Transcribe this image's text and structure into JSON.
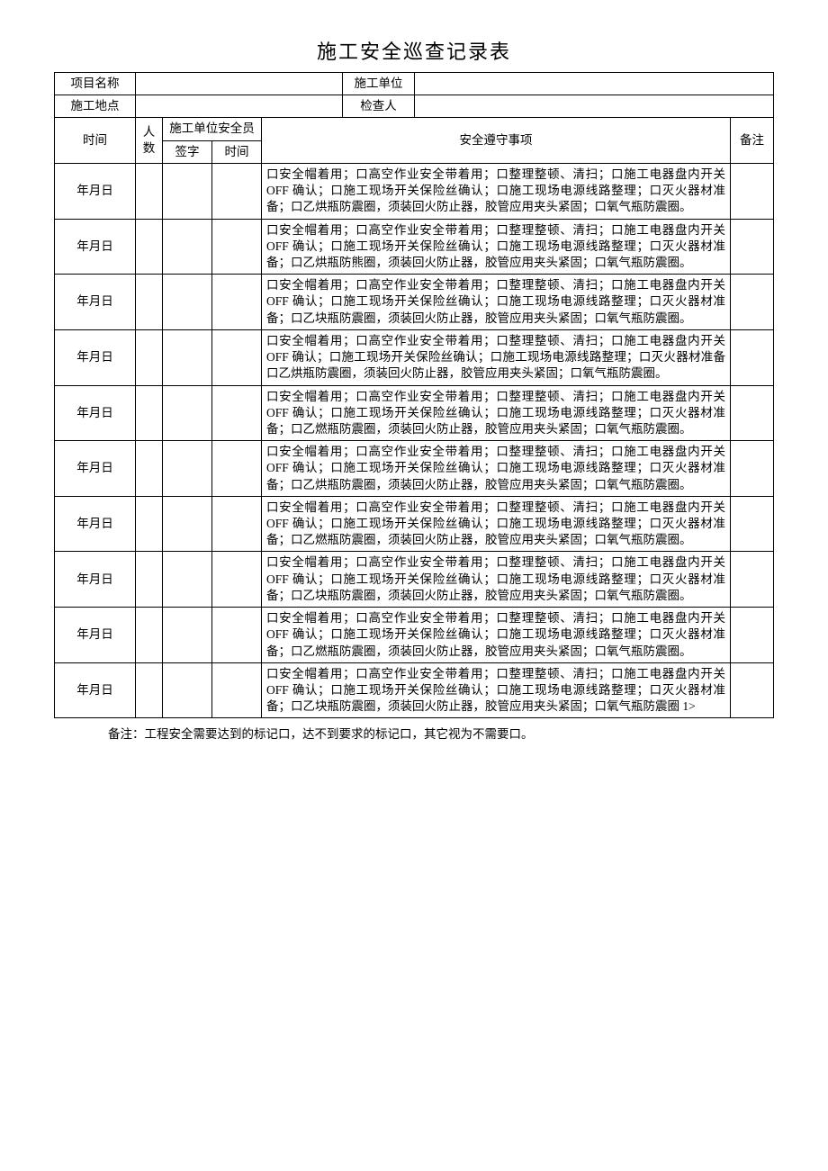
{
  "title": "施工安全巡查记录表",
  "header": {
    "project_name_label": "项目名称",
    "project_name_value": "",
    "construction_unit_label": "施工单位",
    "construction_unit_value": "",
    "construction_site_label": "施工地点",
    "construction_site_value": "",
    "inspector_label": "检查人",
    "inspector_value": ""
  },
  "columns": {
    "time_label": "时间",
    "people_label": "人数",
    "safety_officer_label": "施工单位安全员",
    "sign_label": "签字",
    "sign_time_label": "时间",
    "safety_items_label": "安全遵守事项",
    "remark_label": "备注"
  },
  "rows": [
    {
      "time": "年月日",
      "people": "",
      "sign": "",
      "sign_time": "",
      "safety": "口安全帽着用；口高空作业安全带着用；口整理整顿、清扫；口施工电器盘内开关 OFF 确认；口施工现场开关保险丝确认；口施工现场电源线路整理；口灭火器材准备；口乙烘瓶防震圈，须装回火防止器，胶管应用夹头紧固；口氧气瓶防震圈。",
      "remark": ""
    },
    {
      "time": "年月日",
      "people": "",
      "sign": "",
      "sign_time": "",
      "safety": "口安全帽着用；口高空作业安全带着用；口整理整顿、清扫；口施工电器盘内开关 OFF 确认；口施工现场开关保险丝确认；口施工现场电源线路整理；口灭火器材准备；口乙烘瓶防熊圈，须装回火防止器，胶管应用夹头紧固；口氧气瓶防震圈。",
      "remark": ""
    },
    {
      "time": "年月日",
      "people": "",
      "sign": "",
      "sign_time": "",
      "safety": "口安全帽着用；口高空作业安全带着用；口整理整顿、清扫；口施工电器盘内开关 OFF 确认；口施工现场开关保险丝确认；口施工现场电源线路整理；口灭火器材准备；口乙块瓶防震圈，须装回火防止器，胶管应用夹头紧固；口氧气瓶防震圈。",
      "remark": ""
    },
    {
      "time": "年月日",
      "people": "",
      "sign": "",
      "sign_time": "",
      "safety": "口安全帽着用；口高空作业安全带着用；口整理整顿、清扫；口施工电器盘内开关 OFF 确认；口施工现场开关保险丝确认；口施工现场电源线路整理；口灭火器材准备口乙烘瓶防震圈，须装回火防止器，胶管应用夹头紧固；口氧气瓶防震圈。",
      "remark": ""
    },
    {
      "time": "年月日",
      "people": "",
      "sign": "",
      "sign_time": "",
      "safety": "口安全帽着用；口高空作业安全带着用；口整理整顿、清扫；口施工电器盘内开关 OFF 确认；口施工现场开关保险丝确认；口施工现场电源线路整理；口灭火器材准备；口乙燃瓶防震圈，须装回火防止器，胶管应用夹头紧固；口氧气瓶防震圈。",
      "remark": ""
    },
    {
      "time": "年月日",
      "people": "",
      "sign": "",
      "sign_time": "",
      "safety": "口安全帽着用；口高空作业安全带着用；口整理整顿、清扫；口施工电器盘内开关 OFF 确认；口施工现场开关保险丝确认；口施工现场电源线路整理；口灭火器材准备；口乙烘瓶防震圈，须装回火防止器，胶管应用夹头紧固；口氧气瓶防震圈。",
      "remark": ""
    },
    {
      "time": "年月日",
      "people": "",
      "sign": "",
      "sign_time": "",
      "safety": "口安全帽着用；口高空作业安全带着用；口整理整顿、清扫；口施工电器盘内开关 OFF 确认；口施工现场开关保险丝确认；口施工现场电源线路整理；口灭火器材准备；口乙燃瓶防震圈，须装回火防止器，胶管应用夹头紧固；口氧气瓶防震圈。",
      "remark": ""
    },
    {
      "time": "年月日",
      "people": "",
      "sign": "",
      "sign_time": "",
      "safety": "口安全帽着用；口高空作业安全带着用；口整理整顿、清扫；口施工电器盘内开关 OFF 确认；口施工现场开关保险丝确认；口施工现场电源线路整理；口灭火器材准备；口乙块瓶防震圈，须装回火防止器，胶管应用夹头紧固；口氧气瓶防震圈。",
      "remark": ""
    },
    {
      "time": "年月日",
      "people": "",
      "sign": "",
      "sign_time": "",
      "safety": "口安全帽着用；口高空作业安全带着用；口整理整顿、清扫；口施工电器盘内开关 OFF 确认；口施工现场开关保险丝确认；口施工现场电源线路整理；口灭火器材准备；口乙燃瓶防震圈，须装回火防止器，胶管应用夹头紧固；口氧气瓶防震圈。",
      "remark": ""
    },
    {
      "time": "年月日",
      "people": "",
      "sign": "",
      "sign_time": "",
      "safety": "口安全帽着用；口高空作业安全带着用；口整理整顿、清扫；口施工电器盘内开关 OFF 确认；口施工现场开关保险丝确认；口施工现场电源线路整理；口灭火器材准备；口乙块瓶防震圈，须装回火防止器，胶管应用夹头紧固；口氧气瓶防震圈 1>",
      "remark": ""
    }
  ],
  "footnote": "备注：工程安全需要达到的标记口，达不到要求的标记口，其它视为不需要口。"
}
